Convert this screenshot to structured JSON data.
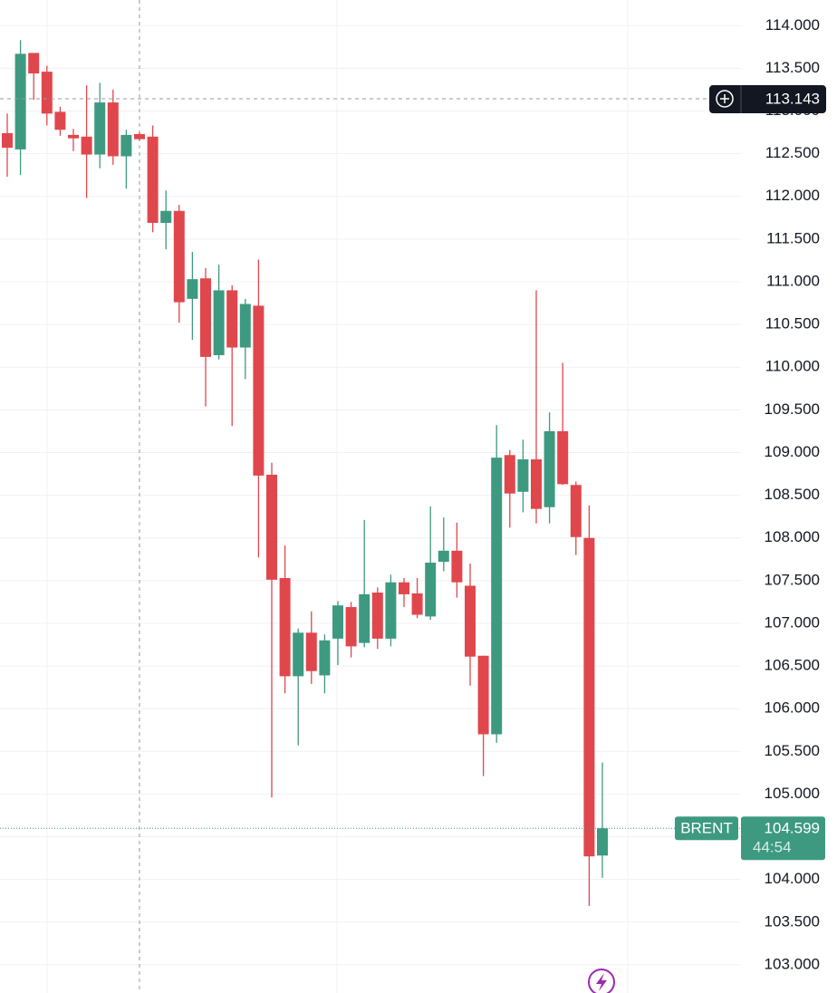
{
  "chart_data": {
    "type": "candlestick",
    "open": [
      112.74,
      112.55,
      113.68,
      113.46,
      112.99,
      112.72,
      112.7,
      112.49,
      113.1,
      112.47,
      112.73,
      112.7,
      111.69,
      111.83,
      110.8,
      111.04,
      110.14,
      110.9,
      110.23,
      110.72,
      108.74,
      107.53,
      106.38,
      106.89,
      106.39,
      106.82,
      107.19,
      106.77,
      107.36,
      106.82,
      107.48,
      107.35,
      107.08,
      107.72,
      107.85,
      107.44,
      106.62,
      105.7,
      108.97,
      108.54,
      108.92,
      108.36,
      109.25,
      108.62,
      108.0,
      104.28
    ],
    "high": [
      112.97,
      113.83,
      113.68,
      113.53,
      113.05,
      112.79,
      113.3,
      113.33,
      113.25,
      112.78,
      112.75,
      112.83,
      112.07,
      111.9,
      111.35,
      111.16,
      111.2,
      110.96,
      110.8,
      111.26,
      108.88,
      107.91,
      106.94,
      107.14,
      106.87,
      107.26,
      107.25,
      108.21,
      107.42,
      107.57,
      107.53,
      107.53,
      108.37,
      108.24,
      108.18,
      107.7,
      106.62,
      109.32,
      109.03,
      109.15,
      110.9,
      109.47,
      110.05,
      108.66,
      108.38,
      105.37
    ],
    "low": [
      112.23,
      112.25,
      113.13,
      112.83,
      112.71,
      112.53,
      111.98,
      112.33,
      112.37,
      112.09,
      112.65,
      111.58,
      111.38,
      110.52,
      110.32,
      109.54,
      110.09,
      109.31,
      109.86,
      107.77,
      104.96,
      106.18,
      105.57,
      106.29,
      106.18,
      106.51,
      106.6,
      106.72,
      106.7,
      106.73,
      107.19,
      107.06,
      107.04,
      107.61,
      107.3,
      106.27,
      105.21,
      105.6,
      108.12,
      108.3,
      108.17,
      108.17,
      108.62,
      107.8,
      103.69,
      104.02
    ],
    "close": [
      112.57,
      113.67,
      113.44,
      112.97,
      112.78,
      112.68,
      112.49,
      113.1,
      112.47,
      112.72,
      112.67,
      111.69,
      111.83,
      110.76,
      111.03,
      110.12,
      110.9,
      110.23,
      110.74,
      108.73,
      107.51,
      106.38,
      106.89,
      106.44,
      106.8,
      107.21,
      106.73,
      107.34,
      106.82,
      107.48,
      107.34,
      107.1,
      107.71,
      107.85,
      107.48,
      106.61,
      105.7,
      108.94,
      108.52,
      108.92,
      108.34,
      109.25,
      108.63,
      108.01,
      104.27,
      104.599
    ],
    "up_color": "#3d9a80",
    "down_color": "#e0474c",
    "ylim": [
      102.67,
      114.3
    ],
    "yticks": [
      {
        "value": 103,
        "label": "103.000"
      },
      {
        "value": 103.5,
        "label": "103.500"
      },
      {
        "value": 104,
        "label": "104.000"
      },
      {
        "value": 104.5,
        "label": "104.500"
      },
      {
        "value": 105,
        "label": "105.000"
      },
      {
        "value": 105.5,
        "label": "105.500"
      },
      {
        "value": 106,
        "label": "106.000"
      },
      {
        "value": 106.5,
        "label": "106.500"
      },
      {
        "value": 107,
        "label": "107.000"
      },
      {
        "value": 107.5,
        "label": "107.500"
      },
      {
        "value": 108,
        "label": "108.000"
      },
      {
        "value": 108.5,
        "label": "108.500"
      },
      {
        "value": 109,
        "label": "109.000"
      },
      {
        "value": 109.5,
        "label": "109.500"
      },
      {
        "value": 110,
        "label": "110.000"
      },
      {
        "value": 110.5,
        "label": "110.500"
      },
      {
        "value": 111,
        "label": "111.000"
      },
      {
        "value": 111.5,
        "label": "111.500"
      },
      {
        "value": 112,
        "label": "112.000"
      },
      {
        "value": 112.5,
        "label": "112.500"
      },
      {
        "value": 113,
        "label": "113.000"
      },
      {
        "value": 113.5,
        "label": "113.500"
      },
      {
        "value": 114,
        "label": "114.000"
      }
    ],
    "grid": true,
    "crosshair": 113.143,
    "symbol": "BRENT",
    "countdown": "44:54"
  }
}
